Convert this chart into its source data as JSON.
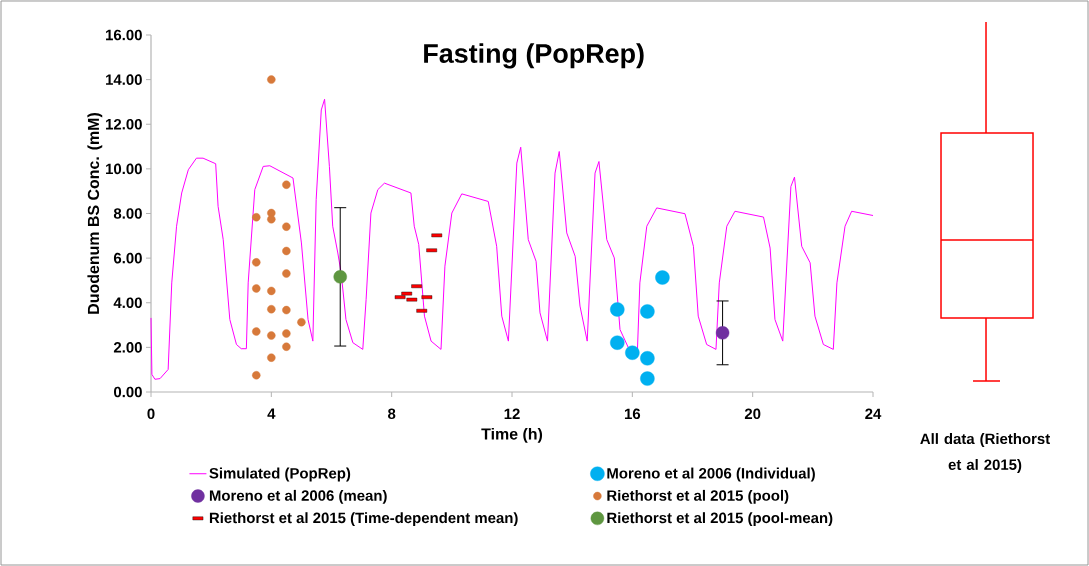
{
  "chart_data": [
    {
      "type": "scatter",
      "title": "Fasting (PopRep)",
      "xlabel": "Time (h)",
      "ylabel": "Duodenum BS Conc. (mM)",
      "xlim": [
        0,
        24
      ],
      "xticks": [
        0,
        4,
        8,
        12,
        16,
        20,
        24
      ],
      "ylim": [
        0,
        16
      ],
      "yticks": [
        {
          "value": 0,
          "label": "0.00"
        },
        {
          "value": 2,
          "label": "2.00"
        },
        {
          "value": 4,
          "label": "4.00"
        },
        {
          "value": 6,
          "label": "6.00"
        },
        {
          "value": 8,
          "label": "8.00"
        },
        {
          "value": 10,
          "label": "10.00"
        },
        {
          "value": 12,
          "label": "12.00"
        },
        {
          "value": 14,
          "label": "14.00"
        },
        {
          "value": 16,
          "label": "16.00"
        }
      ],
      "grid": false,
      "legend": "bottom",
      "series": [
        {
          "name": "Simulated (PopRep)",
          "type": "line",
          "color": "#ff00ff",
          "marker": "none",
          "line_style": "solid",
          "x": [
            0,
            0.03,
            0.13,
            0.3,
            0.57,
            0.69,
            0.85,
            1.02,
            1.24,
            1.51,
            1.73,
            2.15,
            2.23,
            2.4,
            2.62,
            2.84,
            3.0,
            3.17,
            3.23,
            3.45,
            3.73,
            3.95,
            4.72,
            5.0,
            5.22,
            5.38,
            5.49,
            5.66,
            5.77,
            5.93,
            6.04,
            6.21,
            6.32,
            6.48,
            6.71,
            7.04,
            7.15,
            7.31,
            7.54,
            7.76,
            8.64,
            8.75,
            8.9,
            9.09,
            9.31,
            9.64,
            9.77,
            10.0,
            10.33,
            11.21,
            11.49,
            11.66,
            11.88,
            12.16,
            12.29,
            12.54,
            12.8,
            12.93,
            13.18,
            13.43,
            13.57,
            13.82,
            14.1,
            14.26,
            14.5,
            14.76,
            14.89,
            15.15,
            15.4,
            15.59,
            15.87,
            16.17,
            16.25,
            16.48,
            16.81,
            17.75,
            18.03,
            18.19,
            18.47,
            18.78,
            18.89,
            19.14,
            19.41,
            20.36,
            20.58,
            20.74,
            21.0,
            21.27,
            21.39,
            21.63,
            21.91,
            22.07,
            22.35,
            22.68,
            22.8,
            23.07,
            23.29,
            24.0
          ],
          "values": [
            3.32,
            0.79,
            0.57,
            0.6,
            1.01,
            4.89,
            7.43,
            8.92,
            9.96,
            10.48,
            10.48,
            10.23,
            8.32,
            6.83,
            3.25,
            2.13,
            1.94,
            1.94,
            4.89,
            9.07,
            10.11,
            10.14,
            9.59,
            6.68,
            3.25,
            2.28,
            8.62,
            12.64,
            13.12,
            10.11,
            7.43,
            6.23,
            5.34,
            3.25,
            2.21,
            1.91,
            4.14,
            8.02,
            9.07,
            9.36,
            8.92,
            7.43,
            6.61,
            3.4,
            2.28,
            1.91,
            5.64,
            8.02,
            8.88,
            8.54,
            6.53,
            3.4,
            2.28,
            10.26,
            10.97,
            6.83,
            5.86,
            3.55,
            2.28,
            9.81,
            10.78,
            7.13,
            6.08,
            3.85,
            2.28,
            9.81,
            10.33,
            6.83,
            6.01,
            2.8,
            1.98,
            1.91,
            4.89,
            7.43,
            8.25,
            7.99,
            6.53,
            3.4,
            2.13,
            1.91,
            4.89,
            7.43,
            8.1,
            7.84,
            6.45,
            3.25,
            2.28,
            9.21,
            9.63,
            6.53,
            5.79,
            3.4,
            2.13,
            1.91,
            4.89,
            7.43,
            8.1,
            7.91
          ]
        },
        {
          "name": "Moreno et al 2006 (Individual)",
          "color": "#00b0f0",
          "marker": "circle",
          "x": [
            15.5,
            15.5,
            16.0,
            16.5,
            16.5,
            16.5,
            17.0
          ],
          "values": [
            3.7,
            2.21,
            1.76,
            3.61,
            1.51,
            0.6,
            5.13
          ]
        },
        {
          "name": "Moreno et al 2006 (mean)",
          "color": "#7030a0",
          "marker": "circle",
          "x": [
            19.0
          ],
          "values": [
            2.65
          ],
          "errors": [
            1.43
          ]
        },
        {
          "name": "Riethorst et al 2015 (pool)",
          "color": "#d7793a",
          "marker": "circle",
          "x": [
            3.5,
            3.5,
            3.5,
            3.5,
            3.5,
            4.0,
            4.0,
            4.0,
            4.0,
            4.0,
            4.0,
            4.0,
            4.5,
            4.5,
            4.5,
            4.5,
            4.5,
            4.5,
            4.5,
            5.0
          ],
          "values": [
            7.83,
            5.81,
            4.64,
            2.71,
            0.75,
            14.0,
            8.02,
            7.74,
            4.53,
            3.71,
            2.53,
            1.54,
            9.29,
            7.41,
            6.32,
            5.31,
            3.67,
            2.62,
            2.03,
            3.13
          ]
        },
        {
          "name": "Riethorst et al 2015 (Time-dependent mean)",
          "color": "#ff0000",
          "x": [
            8.28,
            8.5,
            8.67,
            8.83,
            9.0,
            9.17,
            9.33,
            9.5
          ],
          "values": [
            4.25,
            4.41,
            4.14,
            4.74,
            3.64,
            4.25,
            6.35,
            7.02
          ]
        },
        {
          "name": "Riethorst et al 2015 (pool-mean)",
          "color": "#5e9640",
          "marker": "circle",
          "x": [
            6.29
          ],
          "values": [
            5.16
          ],
          "errors": [
            3.1
          ]
        }
      ]
    },
    {
      "type": "other",
      "annotations": [
        "All data (Riethorst et al 2015)"
      ]
    }
  ]
}
